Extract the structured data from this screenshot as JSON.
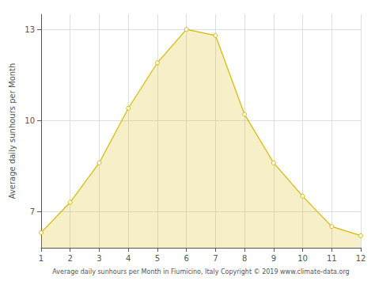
{
  "chart_data": {
    "type": "area",
    "xlabel": "Average daily sunhours per Month in Fiumicino, Italy Copyright © 2019 www.climate-data.org",
    "ylabel": "Average daily sunhours per Month",
    "x": [
      1,
      2,
      3,
      4,
      5,
      6,
      7,
      8,
      9,
      10,
      11,
      12
    ],
    "values": [
      6.3,
      7.3,
      8.6,
      10.4,
      11.9,
      13.0,
      12.8,
      10.2,
      8.6,
      7.5,
      6.5,
      6.2
    ],
    "color": "#d4b800",
    "marker": "circle",
    "xlim": [
      1,
      12
    ],
    "xticks": [
      1,
      2,
      3,
      4,
      5,
      6,
      7,
      8,
      9,
      10,
      11,
      12
    ],
    "ylim": [
      5.8,
      13.5
    ],
    "yticks": [
      7,
      10,
      13
    ],
    "grid": true
  }
}
